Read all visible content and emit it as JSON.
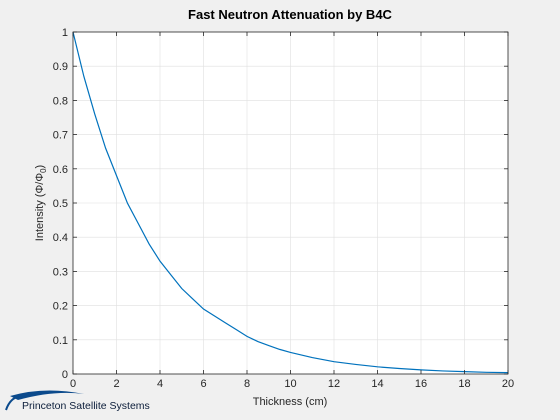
{
  "chart_data": {
    "type": "line",
    "title": "Fast Neutron Attenuation by B4C",
    "xlabel": "Thickness (cm)",
    "ylabel": {
      "prefix": "Intensity (Φ/Φ",
      "subscript": "0",
      "suffix": ")"
    },
    "xlim": [
      0,
      20
    ],
    "ylim": [
      0,
      1
    ],
    "xticks": [
      0,
      2,
      4,
      6,
      8,
      10,
      12,
      14,
      16,
      18,
      20
    ],
    "yticks": [
      0,
      0.1,
      0.2,
      0.3,
      0.4,
      0.5,
      0.6,
      0.7,
      0.8,
      0.9,
      1
    ],
    "grid": true,
    "series": [
      {
        "color": "#0072bd",
        "x": [
          0,
          0.5,
          1,
          1.5,
          2,
          2.5,
          3,
          3.5,
          4,
          4.5,
          5,
          5.5,
          6,
          6.5,
          7,
          7.5,
          8,
          8.5,
          9,
          9.5,
          10,
          11,
          12,
          13,
          14,
          15,
          16,
          17,
          18,
          19,
          20
        ],
        "y": [
          1,
          0.87,
          0.76,
          0.66,
          0.58,
          0.5,
          0.44,
          0.38,
          0.33,
          0.29,
          0.25,
          0.22,
          0.19,
          0.17,
          0.15,
          0.13,
          0.11,
          0.095,
          0.083,
          0.072,
          0.063,
          0.048,
          0.036,
          0.028,
          0.021,
          0.016,
          0.012,
          0.009,
          0.007,
          0.005,
          0.004
        ]
      }
    ]
  },
  "colors": {
    "figure_bg": "#f0f0f0",
    "axes_bg": "#ffffff",
    "grid": "#dfdfdf",
    "axis": "#262626",
    "brand": "#0b1d3a"
  },
  "brand": {
    "name": "Princeton Satellite Systems",
    "icon": "orbit-swoosh-icon"
  }
}
